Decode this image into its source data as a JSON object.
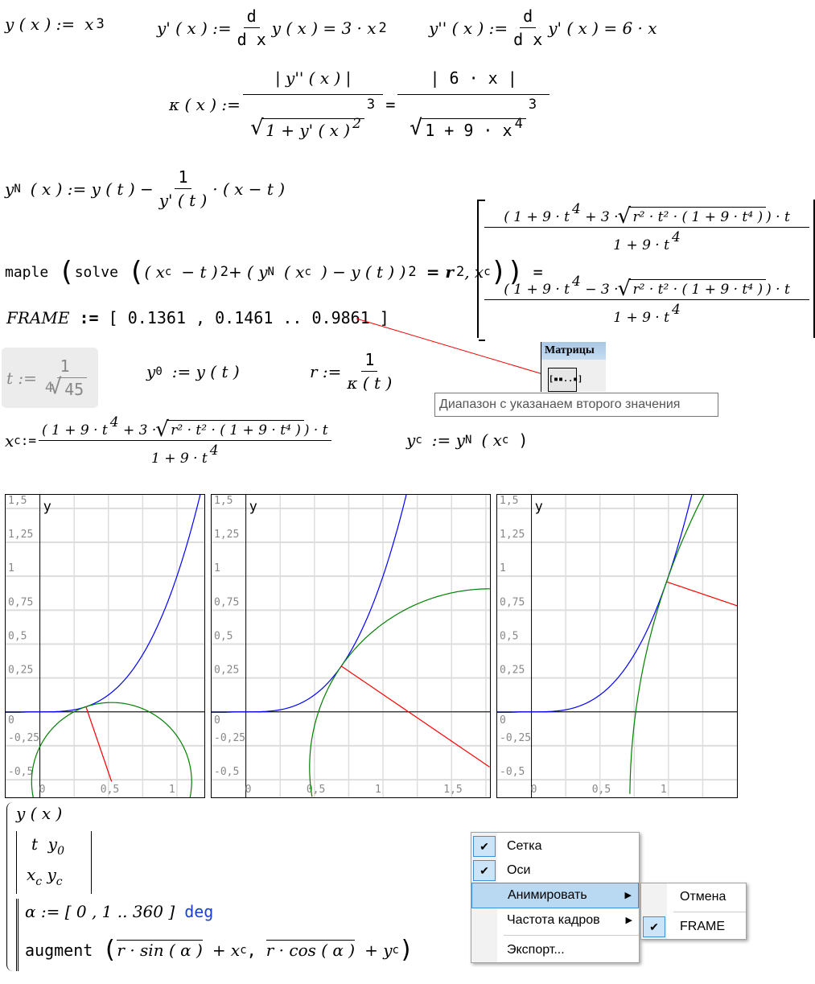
{
  "formulas": {
    "y_def": {
      "lhs": "y ( x ) :=",
      "base": "x",
      "exp": "3"
    },
    "yp_def": {
      "lhs": "y' ( x ) :=",
      "d_num": "d",
      "d_den": "d x",
      "body": "y ( x ) = 3 · x",
      "exp": "2"
    },
    "ypp_def": {
      "lhs": "y'' ( x ) :=",
      "d_num": "d",
      "d_den": "d x",
      "body": "y' ( x ) = 6 · x"
    },
    "kappa": {
      "lhs": "κ ( x ) :=",
      "num1": "| y'' ( x ) |",
      "den1": "1 + y' ( x )",
      "den1_exp": "2",
      "cube": "3",
      "eq": "=",
      "num2": "| 6 · x |",
      "den2": "1 + 9 · x",
      "den2_exp": "4"
    },
    "yN": {
      "lhs": "y",
      "sub": "N",
      "args": "( x ) := y ( t ) −",
      "num": "1",
      "den": "y' ( t )",
      "tail": "· ( x − t )"
    },
    "maple": {
      "fn": "maple",
      "inner": "solve",
      "expr": "( x",
      "c": "c",
      "m1": "− t )",
      "e2": "2",
      "plus": "+ ( y",
      "N": "N",
      "xc": "( x",
      "rest": ") − y ( t ) )",
      "e2b": "2",
      "eqr": "= r",
      "e2c": "2",
      "comma": ", x",
      "close": "=",
      "row1_num": "( 1 + 9 · t",
      "row1_e4": "4",
      "row1_op": "+ 3 ·",
      "row1_sqrt": "r² · t² · ( 1 + 9 · t⁴ )",
      "row1_tail": ") · t",
      "row2_op": "− 3 ·",
      "den": "1 + 9 · t",
      "den_e4": "4"
    },
    "frame": {
      "lhs": "FRAME",
      "op": ":=",
      "value": "[ 0.1361 , 0.1461 .. 0.9861 ]"
    },
    "t_def": {
      "lhs": "t :=",
      "num": "1",
      "root_index": "4",
      "radicand": "45"
    },
    "y0": {
      "lhs": "y",
      "sub": "0",
      "rest": ":= y ( t )"
    },
    "r_def": {
      "lhs": "r :=",
      "num": "1",
      "den": "κ ( t )"
    },
    "xc": {
      "lhs": "x",
      "sub": "c",
      "op": ":=",
      "num_a": "( 1 + 9 · t",
      "e4": "4",
      "num_b": "+ 3 ·",
      "sqrt": "r² · t² · ( 1 + 9 · t⁴ )",
      "num_c": ") · t",
      "den": "1 + 9 · t",
      "den_e4": "4"
    },
    "yc": {
      "lhs": "y",
      "sub": "c",
      "op": ":= y",
      "sub2": "N",
      "rest": "( x",
      "sub3": "c",
      "end": ")"
    }
  },
  "toolbar_popup": {
    "title": "Матрицы",
    "button_glyph": "[▪▪..▪]",
    "tooltip": "Диапазон с указанаем второго значения"
  },
  "program": {
    "l1": "y ( x )",
    "m11": "t",
    "m12": "y",
    "m12s": "0",
    "m21": "x",
    "m21s": "c",
    "m22": "y",
    "m22s": "c",
    "l3a": "α := [ 0 , 1 .. 360 ]",
    "l3b": "deg",
    "l4a": "augment",
    "l4b": "r · sin ( α )",
    "l4c": "+ x",
    "l4cs": "c",
    "l4d": ",",
    "l4e": "r · cos ( α )",
    "l4f": "+ y",
    "l4fs": "c"
  },
  "context_menu": {
    "items": [
      {
        "label": "Сетка",
        "checked": true
      },
      {
        "label": "Оси",
        "checked": true
      },
      {
        "label": "Анимировать",
        "submenu": true
      },
      {
        "label": "Частота кадров",
        "submenu": true
      },
      {
        "label": "Экспорт..."
      }
    ],
    "submenu": [
      {
        "label": "Отмена"
      },
      {
        "label": "FRAME",
        "checked": true
      }
    ],
    "check_glyph": "✔",
    "arrow_glyph": "▶"
  },
  "chart_data": [
    {
      "type": "line",
      "ylabel": "y",
      "y_ticks": [
        "1,5",
        "1,25",
        "1",
        "0,75",
        "0,5",
        "0,25",
        "0",
        "-0,25",
        "-0,5"
      ],
      "x_ticks": [
        "0",
        "0,5",
        "1"
      ],
      "xlim": [
        -0.25,
        1.2
      ],
      "ylim": [
        -0.63,
        1.6
      ],
      "t": 0.3361,
      "grid": true,
      "series": [
        {
          "expr": "y(x)=x^3",
          "color": "#0000ff"
        },
        {
          "expr": "normal segment",
          "color": "#ff0000"
        },
        {
          "expr": "osculating circle",
          "color": "#008000"
        }
      ]
    },
    {
      "type": "line",
      "ylabel": "y",
      "y_ticks": [
        "1,5",
        "1,25",
        "1",
        "0,75",
        "0,5",
        "0,25",
        "0",
        "-0,25",
        "-0,5"
      ],
      "x_ticks": [
        "0",
        "0,5",
        "1",
        "1,5"
      ],
      "xlim": [
        -0.25,
        1.78
      ],
      "ylim": [
        -0.63,
        1.6
      ],
      "t": 0.6961,
      "grid": true,
      "series": [
        {
          "expr": "y(x)=x^3",
          "color": "#0000ff"
        },
        {
          "expr": "normal segment",
          "color": "#ff0000"
        },
        {
          "expr": "osculating circle",
          "color": "#008000"
        }
      ]
    },
    {
      "type": "line",
      "ylabel": "y",
      "y_ticks": [
        "1,5",
        "1,25",
        "1",
        "0,75",
        "0,5",
        "0,25",
        "0",
        "-0,25",
        "-0,5"
      ],
      "x_ticks": [
        "0",
        "0,5",
        "1"
      ],
      "xlim": [
        -0.25,
        1.5
      ],
      "ylim": [
        -0.63,
        1.6
      ],
      "t": 0.9861,
      "grid": true,
      "series": [
        {
          "expr": "y(x)=x^3",
          "color": "#0000ff"
        },
        {
          "expr": "normal segment",
          "color": "#ff0000"
        },
        {
          "expr": "osculating circle",
          "color": "#008000"
        }
      ]
    }
  ]
}
